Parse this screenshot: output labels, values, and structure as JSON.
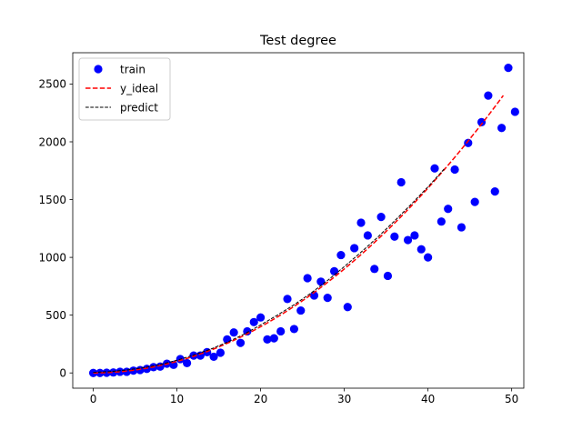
{
  "chart_data": {
    "type": "scatter",
    "title": "Test degree",
    "xlabel": "",
    "ylabel": "",
    "xlim": [
      -2.45,
      51.45
    ],
    "ylim": [
      -132,
      2771
    ],
    "xticks": [
      0,
      10,
      20,
      30,
      40,
      50
    ],
    "yticks": [
      0,
      500,
      1000,
      1500,
      2000,
      2500
    ],
    "grid": false,
    "legend_position": "top-left",
    "series": [
      {
        "name": "train",
        "kind": "scatter",
        "color": "#0000ff",
        "points": [
          [
            0,
            0
          ],
          [
            0.8,
            0
          ],
          [
            1.6,
            2
          ],
          [
            2.4,
            4
          ],
          [
            3.2,
            10
          ],
          [
            4.0,
            10
          ],
          [
            4.8,
            20
          ],
          [
            5.6,
            25
          ],
          [
            6.4,
            35
          ],
          [
            7.2,
            50
          ],
          [
            8.0,
            55
          ],
          [
            8.8,
            80
          ],
          [
            9.6,
            70
          ],
          [
            10.4,
            120
          ],
          [
            11.2,
            85
          ],
          [
            12.0,
            150
          ],
          [
            12.8,
            150
          ],
          [
            13.6,
            180
          ],
          [
            14.4,
            140
          ],
          [
            15.2,
            175
          ],
          [
            16.0,
            290
          ],
          [
            16.8,
            350
          ],
          [
            17.6,
            260
          ],
          [
            18.4,
            360
          ],
          [
            19.2,
            440
          ],
          [
            20.0,
            480
          ],
          [
            20.8,
            290
          ],
          [
            21.6,
            300
          ],
          [
            22.4,
            360
          ],
          [
            23.2,
            640
          ],
          [
            24.0,
            380
          ],
          [
            24.8,
            540
          ],
          [
            25.6,
            820
          ],
          [
            26.4,
            670
          ],
          [
            27.2,
            790
          ],
          [
            28.0,
            650
          ],
          [
            28.8,
            880
          ],
          [
            29.6,
            1020
          ],
          [
            30.4,
            570
          ],
          [
            31.2,
            1080
          ],
          [
            32.0,
            1300
          ],
          [
            32.8,
            1190
          ],
          [
            33.6,
            900
          ],
          [
            34.4,
            1350
          ],
          [
            35.2,
            840
          ],
          [
            36.0,
            1180
          ],
          [
            36.8,
            1650
          ],
          [
            37.6,
            1150
          ],
          [
            38.4,
            1190
          ],
          [
            39.2,
            1070
          ],
          [
            40.0,
            1000
          ],
          [
            40.8,
            1770
          ],
          [
            41.6,
            1310
          ],
          [
            42.4,
            1420
          ],
          [
            43.2,
            1760
          ],
          [
            44.0,
            1260
          ],
          [
            44.8,
            1990
          ],
          [
            45.6,
            1480
          ],
          [
            46.4,
            2170
          ],
          [
            47.2,
            2400
          ],
          [
            48.0,
            1570
          ],
          [
            48.8,
            2120
          ],
          [
            49.6,
            2640
          ],
          [
            50.4,
            2260
          ]
        ]
      },
      {
        "name": "y_ideal",
        "kind": "line",
        "style": "dashed",
        "color": "#ff0000",
        "formula": "y = x^2",
        "x_range": [
          0,
          49
        ]
      },
      {
        "name": "predict",
        "kind": "line",
        "style": "dashed",
        "color": "#000000",
        "x": [
          0,
          2,
          4,
          6,
          8,
          10,
          12,
          14,
          16,
          18,
          20,
          22,
          24,
          26,
          28,
          30,
          32,
          34,
          36,
          38,
          40,
          42
        ],
        "y": [
          5,
          12,
          25,
          45,
          72,
          110,
          155,
          205,
          265,
          335,
          415,
          500,
          590,
          690,
          800,
          920,
          1045,
          1175,
          1315,
          1460,
          1610,
          1770
        ]
      }
    ]
  }
}
